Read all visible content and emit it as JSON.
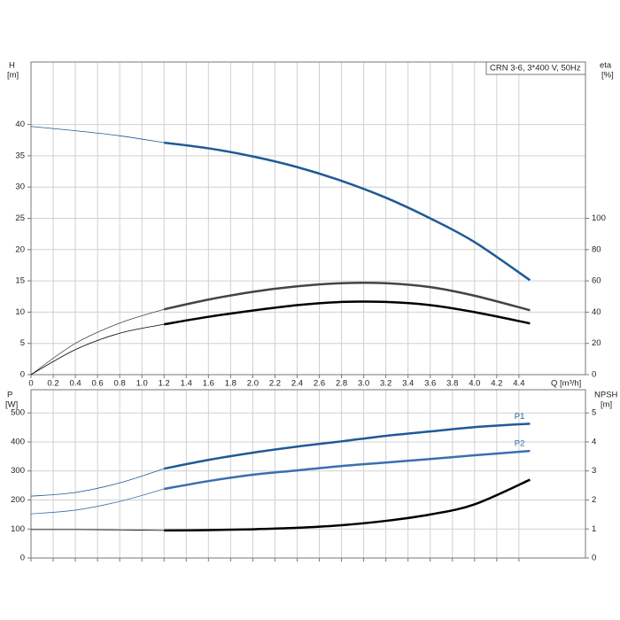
{
  "chart_data": [
    {
      "type": "line",
      "title": "CRN 3-6, 3*400 V, 50Hz",
      "ylabel": "H",
      "yunit": "[m]",
      "y2label": "eta",
      "y2unit": "[%]",
      "xlabel": "Q [m³/h]",
      "xlim": [
        0,
        5.0
      ],
      "ylim": [
        0,
        50
      ],
      "y2lim": [
        0,
        200
      ],
      "xticks": [
        0,
        0.2,
        0.4,
        0.6,
        0.8,
        {
          "value": 1,
          "label": "1.0"
        },
        1.2,
        1.4,
        1.6,
        1.8,
        {
          "value": 2,
          "label": "2.0"
        },
        2.2,
        2.4,
        2.6,
        2.8,
        {
          "value": 3,
          "label": "3.0"
        },
        3.2,
        3.4,
        3.6,
        3.8,
        {
          "value": 4,
          "label": "4.0"
        },
        4.2,
        4.4
      ],
      "yticks": [
        0,
        5,
        10,
        15,
        20,
        25,
        30,
        35,
        40
      ],
      "y2ticks": [
        0,
        20,
        40,
        60,
        80,
        100
      ],
      "grid": true,
      "highlight_xlim": [
        1.2,
        4.5
      ],
      "x": [
        0,
        0.4,
        0.8,
        1.2,
        1.6,
        2.0,
        2.4,
        2.8,
        3.2,
        3.6,
        4.0,
        4.5
      ],
      "series": [
        {
          "color": "#1f5a96",
          "values": [
            39.7,
            39.0,
            38.2,
            37.1,
            36.2,
            34.9,
            33.2,
            31.0,
            28.3,
            25.0,
            21.2,
            15.1
          ]
        },
        {
          "color": "#444444",
          "axis": "y2",
          "values": [
            0,
            20,
            33,
            41.8,
            48,
            53,
            56.5,
            58.5,
            58.5,
            56,
            50.5,
            41.2
          ]
        },
        {
          "color": "#000000",
          "axis": "y2",
          "values": [
            0,
            16,
            26.5,
            32.2,
            37,
            41,
            44.5,
            46.5,
            46.5,
            44.5,
            40,
            32.8
          ]
        }
      ]
    },
    {
      "type": "line",
      "ylabel": "P",
      "yunit": "[W]",
      "y2label": "NPSH",
      "y2unit": "[m]",
      "xlim": [
        0,
        5.0
      ],
      "ylim": [
        0,
        580
      ],
      "y2lim": [
        0,
        5.8
      ],
      "yticks": [
        0,
        100,
        200,
        300,
        400,
        500
      ],
      "y2ticks": [
        0,
        1,
        2,
        3,
        4,
        5
      ],
      "grid": true,
      "highlight_xlim": [
        1.2,
        4.5
      ],
      "x": [
        0,
        0.4,
        0.8,
        1.2,
        1.6,
        2.0,
        2.4,
        2.8,
        3.2,
        3.6,
        4.0,
        4.5
      ],
      "series": [
        {
          "name": "P1",
          "color": "#1f5a96",
          "values": [
            213,
            226,
            259,
            308,
            338,
            363,
            384,
            402,
            421,
            436,
            451,
            463
          ]
        },
        {
          "name": "P2",
          "color": "#3a6fae",
          "values": [
            152,
            165,
            195,
            238,
            265,
            287,
            302,
            317,
            329,
            341,
            354,
            369
          ]
        },
        {
          "color": "#000000",
          "axis": "y2",
          "values": [
            0.98,
            0.98,
            0.97,
            0.95,
            0.96,
            0.99,
            1.04,
            1.13,
            1.28,
            1.5,
            1.85,
            2.7
          ]
        }
      ]
    }
  ]
}
